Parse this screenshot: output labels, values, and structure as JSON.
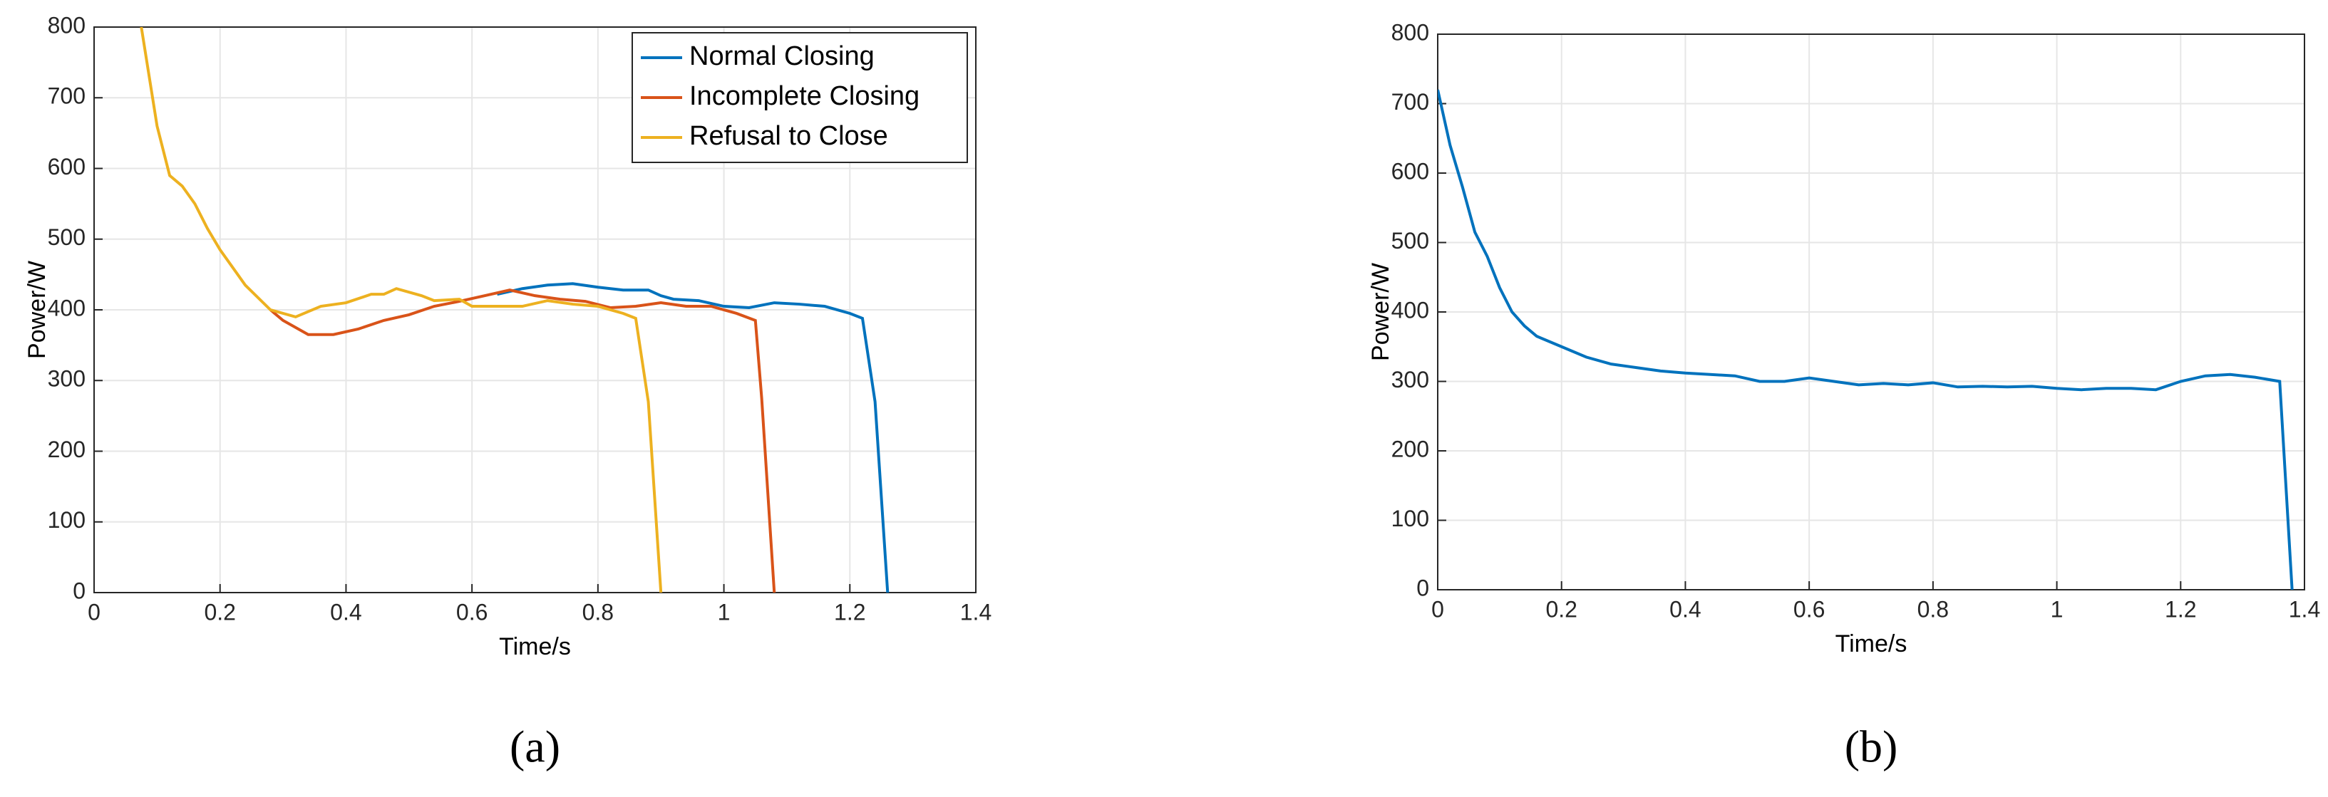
{
  "chart_data": [
    {
      "type": "line",
      "label": "(a)",
      "x_label": "Time/s",
      "y_label": "Power/W",
      "xlim": [
        0,
        1.4
      ],
      "xticks": [
        0,
        0.2,
        0.4,
        0.6,
        0.8,
        1,
        1.2,
        1.4
      ],
      "ylim": [
        0,
        800
      ],
      "yticks": [
        0,
        100,
        200,
        300,
        400,
        500,
        600,
        700,
        800
      ],
      "grid": true,
      "legend": "top-right",
      "series": [
        {
          "name": "Normal Closing",
          "color": "#0072bd",
          "x": [
            0.64,
            0.68,
            0.72,
            0.76,
            0.8,
            0.84,
            0.88,
            0.9,
            0.92,
            0.96,
            1.0,
            1.04,
            1.08,
            1.12,
            1.16,
            1.2,
            1.22,
            1.24,
            1.26
          ],
          "values": [
            422,
            430,
            435,
            437,
            432,
            428,
            428,
            420,
            415,
            413,
            405,
            403,
            410,
            408,
            405,
            395,
            388,
            270,
            0
          ]
        },
        {
          "name": "Incomplete Closing",
          "color": "#d95319",
          "x": [
            0.28,
            0.3,
            0.34,
            0.38,
            0.42,
            0.46,
            0.5,
            0.54,
            0.58,
            0.62,
            0.66,
            0.7,
            0.74,
            0.78,
            0.82,
            0.86,
            0.9,
            0.94,
            0.98,
            1.02,
            1.05,
            1.06,
            1.08
          ],
          "values": [
            400,
            385,
            365,
            365,
            373,
            385,
            393,
            405,
            412,
            420,
            428,
            420,
            415,
            412,
            403,
            405,
            410,
            405,
            405,
            395,
            385,
            275,
            0
          ]
        },
        {
          "name": "Refusal to Close",
          "color": "#edb120",
          "x": [
            0.075,
            0.1,
            0.12,
            0.14,
            0.16,
            0.18,
            0.2,
            0.24,
            0.28,
            0.32,
            0.36,
            0.4,
            0.44,
            0.46,
            0.48,
            0.52,
            0.54,
            0.58,
            0.6,
            0.64,
            0.68,
            0.72,
            0.76,
            0.8,
            0.84,
            0.86,
            0.88,
            0.9
          ],
          "values": [
            800,
            660,
            590,
            575,
            550,
            515,
            485,
            435,
            400,
            390,
            405,
            410,
            422,
            422,
            430,
            420,
            413,
            415,
            405,
            405,
            405,
            413,
            408,
            405,
            395,
            388,
            270,
            0
          ]
        }
      ]
    },
    {
      "type": "line",
      "label": "(b)",
      "x_label": "Time/s",
      "y_label": "Power/W",
      "xlim": [
        0,
        1.4
      ],
      "xticks": [
        0,
        0.2,
        0.4,
        0.6,
        0.8,
        1,
        1.2,
        1.4
      ],
      "ylim": [
        0,
        800
      ],
      "yticks": [
        0,
        100,
        200,
        300,
        400,
        500,
        600,
        700,
        800
      ],
      "grid": true,
      "series": [
        {
          "color": "#0072bd",
          "x": [
            0,
            0.02,
            0.04,
            0.06,
            0.08,
            0.1,
            0.12,
            0.14,
            0.16,
            0.2,
            0.24,
            0.28,
            0.32,
            0.36,
            0.4,
            0.44,
            0.48,
            0.52,
            0.56,
            0.6,
            0.64,
            0.68,
            0.72,
            0.76,
            0.8,
            0.84,
            0.88,
            0.92,
            0.96,
            1.0,
            1.04,
            1.08,
            1.12,
            1.16,
            1.2,
            1.24,
            1.28,
            1.32,
            1.36,
            1.38
          ],
          "values": [
            720,
            640,
            580,
            515,
            480,
            435,
            400,
            380,
            365,
            350,
            335,
            325,
            320,
            315,
            312,
            310,
            308,
            300,
            300,
            305,
            300,
            295,
            297,
            295,
            298,
            292,
            293,
            292,
            293,
            290,
            288,
            290,
            290,
            288,
            300,
            308,
            310,
            306,
            300,
            0
          ]
        }
      ]
    }
  ]
}
